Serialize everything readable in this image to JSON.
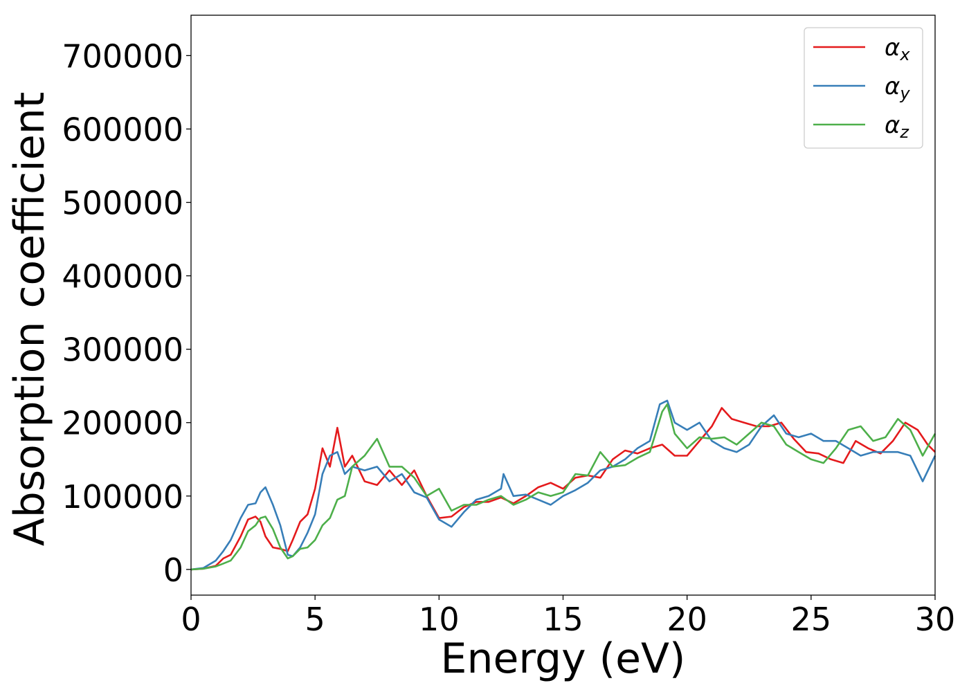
{
  "chart_data": {
    "type": "line",
    "title": "",
    "xlabel": "Energy (eV)",
    "ylabel": "Absorption coefficient",
    "xlim": [
      0,
      30
    ],
    "ylim": [
      -35000,
      755000
    ],
    "xticks": [
      0,
      5,
      10,
      15,
      20,
      25,
      30
    ],
    "yticks": [
      0,
      100000,
      200000,
      300000,
      400000,
      500000,
      600000,
      700000
    ],
    "grid": false,
    "legend_position": "upper right",
    "series": [
      {
        "name": "αx",
        "symbol": "α",
        "subscript": "x",
        "color": "#e41a1c",
        "x": [
          0,
          0.5,
          1.0,
          1.3,
          1.6,
          2.0,
          2.3,
          2.6,
          2.8,
          3.0,
          3.3,
          3.6,
          3.9,
          4.1,
          4.4,
          4.7,
          5.0,
          5.3,
          5.6,
          5.9,
          6.2,
          6.5,
          7.0,
          7.5,
          8.0,
          8.5,
          9.0,
          9.5,
          10.0,
          10.5,
          11.0,
          11.5,
          12.0,
          12.5,
          13.0,
          13.5,
          14.0,
          14.5,
          15.0,
          15.5,
          16.0,
          16.5,
          17.0,
          17.5,
          18.0,
          18.5,
          19.0,
          19.5,
          20.0,
          20.5,
          21.0,
          21.4,
          21.8,
          22.3,
          22.8,
          23.3,
          23.8,
          24.3,
          24.8,
          25.3,
          25.8,
          26.3,
          26.8,
          27.3,
          27.8,
          28.3,
          28.8,
          29.3,
          29.7,
          30.0
        ],
        "y": [
          0,
          1000,
          5000,
          15000,
          20000,
          45000,
          68000,
          72000,
          65000,
          45000,
          30000,
          28000,
          25000,
          40000,
          65000,
          75000,
          110000,
          165000,
          140000,
          193000,
          140000,
          155000,
          120000,
          115000,
          135000,
          115000,
          135000,
          100000,
          70000,
          72000,
          85000,
          92000,
          92000,
          98000,
          90000,
          100000,
          112000,
          118000,
          110000,
          125000,
          128000,
          125000,
          150000,
          162000,
          158000,
          165000,
          170000,
          155000,
          155000,
          175000,
          195000,
          220000,
          205000,
          200000,
          195000,
          195000,
          200000,
          178000,
          160000,
          158000,
          150000,
          145000,
          175000,
          165000,
          158000,
          175000,
          200000,
          190000,
          170000,
          160000
        ]
      },
      {
        "name": "αy",
        "symbol": "α",
        "subscript": "y",
        "color": "#377eb8",
        "x": [
          0,
          0.5,
          1.0,
          1.3,
          1.6,
          2.0,
          2.3,
          2.6,
          2.8,
          3.0,
          3.3,
          3.6,
          3.9,
          4.1,
          4.4,
          4.7,
          5.0,
          5.3,
          5.6,
          5.9,
          6.2,
          6.5,
          7.0,
          7.5,
          8.0,
          8.5,
          9.0,
          9.5,
          10.0,
          10.5,
          11.0,
          11.5,
          12.0,
          12.5,
          12.6,
          13.0,
          13.5,
          14.0,
          14.5,
          15.0,
          15.5,
          16.0,
          16.5,
          17.0,
          17.5,
          18.0,
          18.5,
          18.9,
          19.2,
          19.5,
          20.0,
          20.5,
          21.0,
          21.5,
          22.0,
          22.5,
          23.0,
          23.5,
          24.0,
          24.5,
          25.0,
          25.5,
          26.0,
          26.5,
          27.0,
          27.5,
          28.0,
          28.5,
          29.0,
          29.5,
          30.0
        ],
        "y": [
          0,
          2000,
          12000,
          25000,
          40000,
          70000,
          88000,
          90000,
          105000,
          112000,
          88000,
          60000,
          20000,
          18000,
          30000,
          50000,
          75000,
          130000,
          155000,
          160000,
          130000,
          140000,
          135000,
          140000,
          120000,
          130000,
          105000,
          98000,
          68000,
          58000,
          78000,
          95000,
          100000,
          110000,
          130000,
          100000,
          102000,
          95000,
          88000,
          100000,
          108000,
          118000,
          135000,
          140000,
          150000,
          165000,
          175000,
          225000,
          230000,
          200000,
          190000,
          200000,
          175000,
          165000,
          160000,
          170000,
          195000,
          210000,
          185000,
          180000,
          185000,
          175000,
          175000,
          165000,
          155000,
          160000,
          160000,
          160000,
          155000,
          120000,
          155000
        ]
      },
      {
        "name": "αz",
        "symbol": "α",
        "subscript": "z",
        "color": "#4daf4a",
        "x": [
          0,
          0.5,
          1.0,
          1.3,
          1.6,
          2.0,
          2.3,
          2.6,
          2.8,
          3.0,
          3.3,
          3.6,
          3.9,
          4.1,
          4.4,
          4.7,
          5.0,
          5.3,
          5.6,
          5.9,
          6.2,
          6.5,
          7.0,
          7.5,
          8.0,
          8.5,
          9.0,
          9.5,
          10.0,
          10.5,
          11.0,
          11.5,
          12.0,
          12.5,
          13.0,
          13.5,
          14.0,
          14.5,
          15.0,
          15.5,
          16.0,
          16.5,
          17.0,
          17.5,
          18.0,
          18.5,
          19.0,
          19.2,
          19.5,
          20.0,
          20.5,
          21.0,
          21.5,
          22.0,
          22.5,
          23.0,
          23.5,
          24.0,
          24.5,
          25.0,
          25.5,
          26.0,
          26.5,
          27.0,
          27.5,
          28.0,
          28.5,
          29.0,
          29.5,
          30.0
        ],
        "y": [
          0,
          1000,
          4000,
          8000,
          12000,
          30000,
          52000,
          60000,
          70000,
          72000,
          55000,
          30000,
          15000,
          18000,
          28000,
          30000,
          40000,
          60000,
          70000,
          95000,
          100000,
          140000,
          155000,
          178000,
          140000,
          140000,
          125000,
          100000,
          110000,
          80000,
          88000,
          88000,
          95000,
          100000,
          88000,
          95000,
          105000,
          100000,
          105000,
          130000,
          128000,
          160000,
          140000,
          142000,
          152000,
          160000,
          215000,
          225000,
          185000,
          165000,
          180000,
          178000,
          180000,
          170000,
          185000,
          200000,
          195000,
          170000,
          160000,
          150000,
          145000,
          165000,
          190000,
          195000,
          175000,
          180000,
          205000,
          190000,
          155000,
          185000
        ]
      }
    ]
  }
}
